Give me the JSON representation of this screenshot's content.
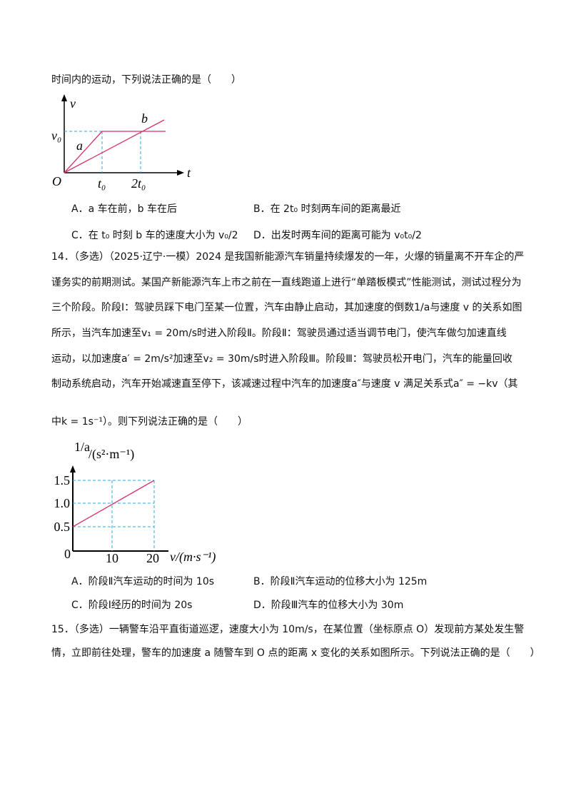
{
  "intro": "时间内的运动，下列说法正确的是（　　）",
  "figure1": {
    "v_axis": "v",
    "v0": "v₀",
    "line_a": "a",
    "line_b": "b",
    "origin": "O",
    "t0": "t₀",
    "t2": "2t₀",
    "t_axis": "t"
  },
  "q13_options": [
    "A．a 车在前，b 车在后",
    "B．在 2t₀ 时刻两车间的距离最近",
    "C．在 t₀ 时刻 b 车的速度大小为 v₀/2",
    "D．出发时两车间的距离可能为 v₀t₀/2"
  ],
  "q14_lines": [
    "14．（多选）（2025·辽宁·一模）2024 是我国新能源汽车销量持续爆发的一年，火爆的销量离不开车企的严",
    "谨务实的前期测试。某国产新能源汽车上市之前在一直线跑道上进行“单踏板模式”性能测试，测试过程分为",
    "三个阶段。阶段Ⅰ：驾驶员踩下电门至某一位置，汽车由静止启动，其加速度的倒数1/a与速度 v 的关系如图",
    "所示，当汽车加速至v₁ = 20m/s时进入阶段Ⅱ。阶段Ⅱ：驾驶员通过适当调节电门，使汽车做匀加速直线",
    "运动，以加速度a′ = 2m/s²加速至v₂ = 30m/s时进入阶段Ⅲ。阶段Ⅲ：驾驶员松开电门，汽车的能量回收",
    "制动系统启动，汽车开始减速直至停下，该减速过程中汽车的加速度a″与速度 v 满足关系式a″ = −kv（其",
    "中k = 1s⁻¹）。则下列说法正确的是（　　）"
  ],
  "figure2": {
    "y_axis_fraction": "1/a",
    "y_axis_unit": "/(s²·m⁻¹)",
    "y_ticks": [
      "1.5",
      "1.0",
      "0.5"
    ],
    "origin": "0",
    "x_ticks": [
      "10",
      "20"
    ],
    "x_axis": "v/(m·s⁻¹)"
  },
  "q14_options": [
    "A．阶段Ⅱ汽车运动的时间为 10s",
    "B．阶段Ⅱ汽车运动的位移大小为 125m",
    "C．阶段Ⅰ经历的时间为 20s",
    "D．阶段Ⅲ汽车的位移大小为 30m"
  ],
  "q15_lines": [
    "15．（多选）一辆警车沿平直街道巡逻，速度大小为 10m/s，在某位置（坐标原点 O）发现前方某处发生警",
    "情，立即前往处理，警车的加速度 a 随警车到 O 点的距离 x 变化的关系如图所示。下列说法正确的是（　　）"
  ]
}
